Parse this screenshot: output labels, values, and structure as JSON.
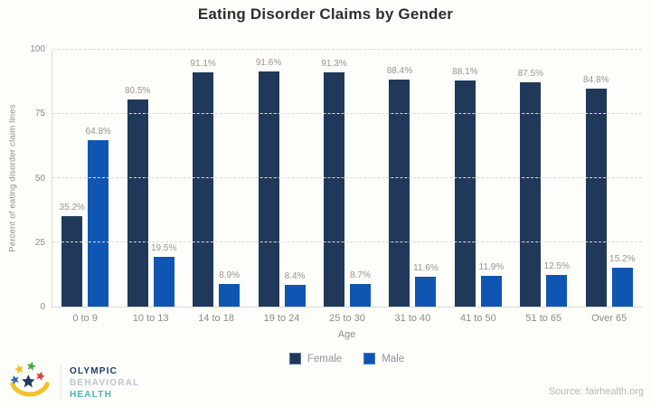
{
  "title": "Eating Disorder Claims by Gender",
  "chart_data": {
    "type": "bar",
    "title": "Eating Disorder Claims by Gender",
    "xlabel": "Age",
    "ylabel": "Percent of eating disorder claim lines",
    "ylim": [
      0,
      100
    ],
    "yticks": [
      0,
      25,
      50,
      75,
      100
    ],
    "grid": "horizontal dashed",
    "legend_position": "bottom center",
    "categories": [
      "0 to 9",
      "10 to 13",
      "14 to 18",
      "19 to 24",
      "25 to 30",
      "31 to 40",
      "41 to 50",
      "51 to 65",
      "Over 65"
    ],
    "series": [
      {
        "name": "Female",
        "color": "#20395b",
        "values": [
          35.2,
          80.5,
          91.1,
          91.6,
          91.3,
          88.4,
          88.1,
          87.5,
          84.8
        ],
        "labels": [
          "35.2%",
          "80.5%",
          "91.1%",
          "91.6%",
          "91.3%",
          "88.4%",
          "88.1%",
          "87.5%",
          "84.8%"
        ]
      },
      {
        "name": "Male",
        "color": "#0f56b2",
        "values": [
          64.8,
          19.5,
          8.9,
          8.4,
          8.7,
          11.6,
          11.9,
          12.5,
          15.2
        ],
        "labels": [
          "64.8%",
          "19.5%",
          "8.9%",
          "8.4%",
          "8.7%",
          "11.6%",
          "11.9%",
          "12.5%",
          "15.2%"
        ]
      }
    ]
  },
  "footer": {
    "logo": {
      "line1": "OLYMPIC",
      "line2": "BEHAVIORAL",
      "line3": "HEALTH"
    },
    "source": "Source:  fairhealth.org"
  },
  "colors": {
    "female_bar": "#20395b",
    "male_bar": "#0f56b2",
    "logo_navy": "#1b3b6f",
    "logo_teal": "#45b8b0",
    "logo_yellow": "#f0c428",
    "logo_red": "#e23b3b",
    "logo_green": "#4aa546",
    "logo_blue": "#2f6fb3"
  }
}
